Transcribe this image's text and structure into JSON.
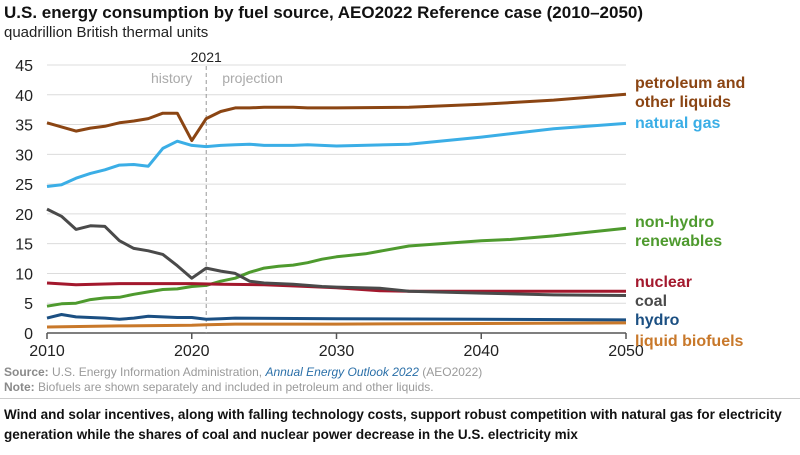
{
  "chart_data": {
    "type": "line",
    "title": "U.S. energy consumption by fuel source, AEO2022 Reference case (2010–2050)",
    "subtitle": "quadrillion British thermal units",
    "xlim": [
      2010,
      2050
    ],
    "ylim": [
      0,
      45
    ],
    "x_ticks": [
      2010,
      2020,
      2030,
      2040,
      2050
    ],
    "y_ticks": [
      0,
      5,
      10,
      15,
      20,
      25,
      30,
      35,
      40,
      45
    ],
    "grid": "horizontal",
    "legend_placement": "right (direct labels)",
    "annotations": {
      "divider_year": "2021",
      "history": "history",
      "projection": "projection"
    },
    "series": [
      {
        "name": "petroleum and other liquids",
        "label_lines": [
          "petroleum and",
          "other liquids"
        ],
        "color": "#8B4513",
        "x": [
          2010,
          2011,
          2012,
          2013,
          2014,
          2015,
          2016,
          2017,
          2018,
          2019,
          2020,
          2021,
          2022,
          2023,
          2024,
          2025,
          2026,
          2027,
          2028,
          2029,
          2030,
          2035,
          2040,
          2045,
          2050
        ],
        "y": [
          35.3,
          34.6,
          33.9,
          34.4,
          34.7,
          35.3,
          35.6,
          36.0,
          36.9,
          36.9,
          32.3,
          36.0,
          37.2,
          37.8,
          37.8,
          37.9,
          37.9,
          37.9,
          37.8,
          37.8,
          37.8,
          37.9,
          38.4,
          39.1,
          40.1
        ]
      },
      {
        "name": "natural gas",
        "label_lines": [
          "natural gas"
        ],
        "color": "#3BAEE6",
        "x": [
          2010,
          2011,
          2012,
          2013,
          2014,
          2015,
          2016,
          2017,
          2018,
          2019,
          2020,
          2021,
          2022,
          2023,
          2024,
          2025,
          2026,
          2027,
          2028,
          2029,
          2030,
          2035,
          2040,
          2045,
          2050
        ],
        "y": [
          24.6,
          24.9,
          26.0,
          26.8,
          27.4,
          28.2,
          28.3,
          28.0,
          31.0,
          32.2,
          31.5,
          31.3,
          31.5,
          31.6,
          31.7,
          31.5,
          31.5,
          31.5,
          31.6,
          31.5,
          31.4,
          31.7,
          32.9,
          34.3,
          35.2
        ]
      },
      {
        "name": "non-hydro renewables",
        "label_lines": [
          "non-hydro",
          "renewables"
        ],
        "color": "#4E9A2E",
        "x": [
          2010,
          2011,
          2012,
          2013,
          2014,
          2015,
          2016,
          2017,
          2018,
          2019,
          2020,
          2021,
          2022,
          2023,
          2024,
          2025,
          2026,
          2027,
          2028,
          2029,
          2030,
          2032,
          2035,
          2040,
          2042,
          2045,
          2050
        ],
        "y": [
          4.5,
          4.9,
          5.0,
          5.6,
          5.9,
          6.0,
          6.5,
          6.9,
          7.3,
          7.4,
          7.8,
          8.0,
          8.7,
          9.2,
          10.2,
          10.9,
          11.2,
          11.4,
          11.8,
          12.4,
          12.8,
          13.3,
          14.6,
          15.5,
          15.7,
          16.3,
          17.6
        ]
      },
      {
        "name": "nuclear",
        "label_lines": [
          "nuclear"
        ],
        "color": "#A3182D",
        "x": [
          2010,
          2012,
          2015,
          2020,
          2022,
          2025,
          2028,
          2030,
          2033,
          2035,
          2040,
          2045,
          2050
        ],
        "y": [
          8.4,
          8.1,
          8.3,
          8.3,
          8.2,
          8.1,
          7.8,
          7.6,
          7.1,
          7.0,
          7.0,
          7.0,
          7.0
        ]
      },
      {
        "name": "coal",
        "label_lines": [
          "coal"
        ],
        "color": "#4A4A4A",
        "x": [
          2010,
          2011,
          2012,
          2013,
          2014,
          2015,
          2016,
          2017,
          2018,
          2019,
          2020,
          2021,
          2022,
          2023,
          2024,
          2025,
          2026,
          2027,
          2028,
          2029,
          2030,
          2033,
          2035,
          2040,
          2045,
          2050
        ],
        "y": [
          20.8,
          19.6,
          17.4,
          18.0,
          17.9,
          15.5,
          14.2,
          13.8,
          13.2,
          11.3,
          9.2,
          10.9,
          10.4,
          10.0,
          8.7,
          8.4,
          8.3,
          8.2,
          8.0,
          7.8,
          7.7,
          7.5,
          7.0,
          6.7,
          6.4,
          6.3
        ]
      },
      {
        "name": "hydro",
        "label_lines": [
          "hydro"
        ],
        "color": "#1B4F82",
        "x": [
          2010,
          2011,
          2012,
          2013,
          2014,
          2015,
          2016,
          2017,
          2018,
          2019,
          2020,
          2021,
          2022,
          2023,
          2030,
          2040,
          2050
        ],
        "y": [
          2.5,
          3.1,
          2.7,
          2.6,
          2.5,
          2.3,
          2.5,
          2.8,
          2.7,
          2.6,
          2.6,
          2.3,
          2.4,
          2.5,
          2.4,
          2.3,
          2.2
        ]
      },
      {
        "name": "liquid biofuels",
        "label_lines": [
          "liquid biofuels"
        ],
        "color": "#C8782A",
        "x": [
          2010,
          2015,
          2020,
          2021,
          2023,
          2030,
          2040,
          2050
        ],
        "y": [
          1.0,
          1.2,
          1.3,
          1.4,
          1.5,
          1.5,
          1.6,
          1.7
        ]
      }
    ]
  },
  "footer": {
    "source_label": "Source:",
    "source_text": " U.S. Energy Information Administration, ",
    "source_link": "Annual Energy Outlook 2022",
    "source_suffix": " (AEO2022)",
    "note_label": "Note:",
    "note_text": " Biofuels are shown separately and included in petroleum and other liquids."
  },
  "caption": "Wind and solar incentives, along with falling technology costs, support robust competition with natural gas for electricity generation while the shares of coal and nuclear power decrease in the U.S. electricity mix"
}
